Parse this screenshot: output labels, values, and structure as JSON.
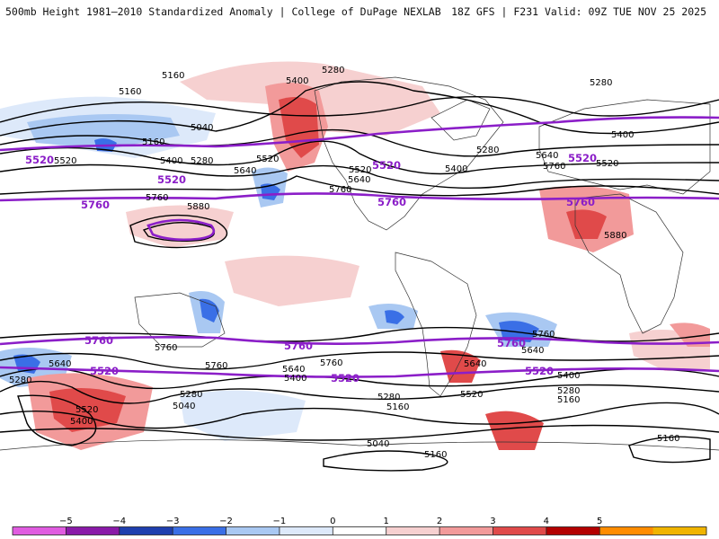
{
  "header": {
    "left_title": "500mb Height 1981–2010 Standardized Anomaly | College of DuPage NEXLAB",
    "right_title": "18Z GFS | F231 Valid: 09Z TUE NOV 25 2025"
  },
  "colors": {
    "key_contour": "#8b1ec8",
    "palette": [
      "#e05ce0",
      "#8a1aa8",
      "#1f3fae",
      "#3a6fe6",
      "#a9c8f2",
      "#dde9fa",
      "#ffffff",
      "#f6d0d0",
      "#f29a9a",
      "#e04a4a",
      "#b30000",
      "#ff8c00",
      "#f0b400"
    ]
  },
  "contour_labels": [
    {
      "text": "5160"
    },
    {
      "text": "5160"
    },
    {
      "text": "5280"
    },
    {
      "text": "5400"
    },
    {
      "text": "5280"
    },
    {
      "text": "5040"
    },
    {
      "text": "5160"
    },
    {
      "text": "5400"
    },
    {
      "text": "5280"
    },
    {
      "text": "5520"
    },
    {
      "text": "5640"
    },
    {
      "text": "5520"
    },
    {
      "text": "5520"
    },
    {
      "text": "5640"
    },
    {
      "text": "5400"
    },
    {
      "text": "5760"
    },
    {
      "text": "5880"
    },
    {
      "text": "5760"
    },
    {
      "text": "5280"
    },
    {
      "text": "5400"
    },
    {
      "text": "5640"
    },
    {
      "text": "5760"
    },
    {
      "text": "5520"
    },
    {
      "text": "5880"
    },
    {
      "text": "5760"
    },
    {
      "text": "5760"
    },
    {
      "text": "5640"
    },
    {
      "text": "5280"
    },
    {
      "text": "5640"
    },
    {
      "text": "5760"
    },
    {
      "text": "5640"
    },
    {
      "text": "5400"
    },
    {
      "text": "5280"
    },
    {
      "text": "5040"
    },
    {
      "text": "5520"
    },
    {
      "text": "5400"
    },
    {
      "text": "5280"
    },
    {
      "text": "5160"
    },
    {
      "text": "5040"
    },
    {
      "text": "5520"
    },
    {
      "text": "5160"
    },
    {
      "text": "5760"
    },
    {
      "text": "5640"
    },
    {
      "text": "5400"
    },
    {
      "text": "5280"
    },
    {
      "text": "5160"
    },
    {
      "text": "5160"
    }
  ],
  "key_contours": {
    "labels": [
      "5520",
      "5760",
      "5520",
      "5760",
      "5520",
      "5760",
      "5760",
      "5520",
      "5760",
      "5520",
      "5760",
      "5520",
      "5520"
    ]
  },
  "colorbar": {
    "ticks": [
      "−5",
      "−4",
      "−3",
      "−2",
      "−1",
      "0",
      "1",
      "2",
      "3",
      "4",
      "5"
    ]
  }
}
